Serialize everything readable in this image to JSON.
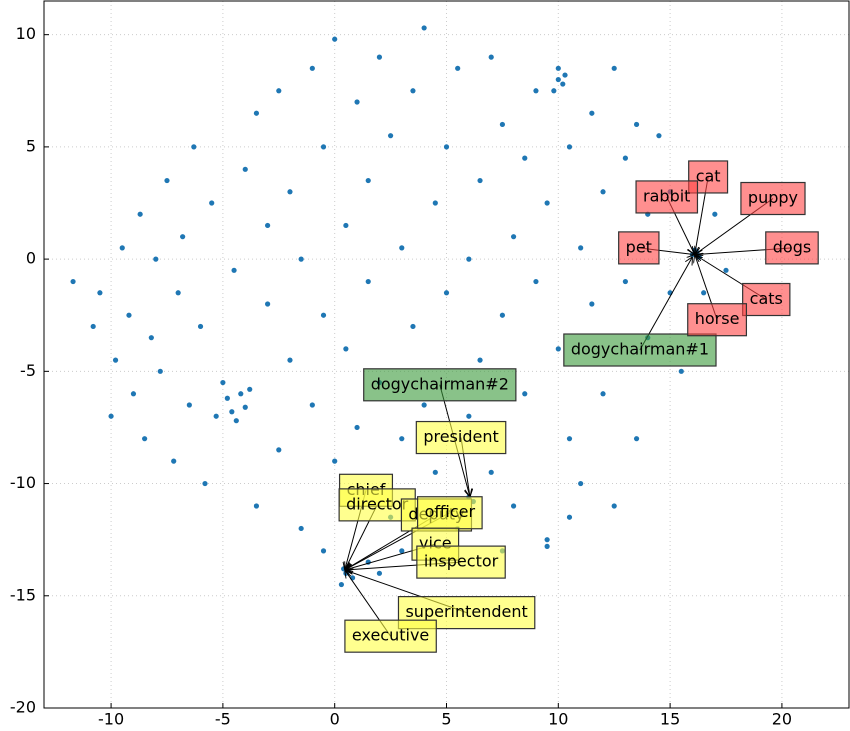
{
  "chart_data": {
    "type": "scatter",
    "color": "#1f77b4",
    "xlim": [
      -13,
      23
    ],
    "ylim": [
      -20,
      11.5
    ],
    "xticks": [
      -10,
      -5,
      0,
      5,
      10,
      15,
      20
    ],
    "yticks": [
      -20,
      -15,
      -10,
      -5,
      0,
      5,
      10
    ],
    "grid": true,
    "points": [
      [
        -11.7,
        -1
      ],
      [
        -10.8,
        -3
      ],
      [
        -10.5,
        -1.5
      ],
      [
        -10,
        -7
      ],
      [
        -9.8,
        -4.5
      ],
      [
        -9.5,
        0.5
      ],
      [
        -9.2,
        -2.5
      ],
      [
        -9,
        -6
      ],
      [
        -8.7,
        2
      ],
      [
        -8.5,
        -8
      ],
      [
        -8.2,
        -3.5
      ],
      [
        -8,
        0
      ],
      [
        -7.8,
        -5
      ],
      [
        -7.5,
        3.5
      ],
      [
        -7.2,
        -9
      ],
      [
        -7,
        -1.5
      ],
      [
        -6.8,
        1
      ],
      [
        -6.5,
        -6.5
      ],
      [
        -6.3,
        5
      ],
      [
        -6,
        -3
      ],
      [
        -5.8,
        -10
      ],
      [
        -5.5,
        2.5
      ],
      [
        -5.3,
        -7
      ],
      [
        -5,
        -5.5
      ],
      [
        -4.8,
        -6.2
      ],
      [
        -4.6,
        -6.8
      ],
      [
        -4.4,
        -7.2
      ],
      [
        -4.2,
        -6
      ],
      [
        -4,
        -6.6
      ],
      [
        -3.8,
        -5.8
      ],
      [
        -4.5,
        -0.5
      ],
      [
        -4,
        4
      ],
      [
        -3.5,
        6.5
      ],
      [
        -3.5,
        -11
      ],
      [
        -3,
        -2
      ],
      [
        -3,
        1.5
      ],
      [
        -2.5,
        -8.5
      ],
      [
        -2.5,
        7.5
      ],
      [
        -2,
        -4.5
      ],
      [
        -2,
        3
      ],
      [
        -1.5,
        -12
      ],
      [
        -1.5,
        0
      ],
      [
        -1,
        8.5
      ],
      [
        -1,
        -6.5
      ],
      [
        -0.5,
        5
      ],
      [
        -0.5,
        -2.5
      ],
      [
        0,
        9.8
      ],
      [
        0,
        -9
      ],
      [
        0.5,
        1.5
      ],
      [
        0.5,
        -4
      ],
      [
        1,
        7
      ],
      [
        1,
        -7.5
      ],
      [
        1.5,
        3.5
      ],
      [
        1.5,
        -1
      ],
      [
        2,
        9
      ],
      [
        2,
        -5.5
      ],
      [
        2.5,
        5.5
      ],
      [
        2.5,
        -11.5
      ],
      [
        3,
        0.5
      ],
      [
        3,
        -8
      ],
      [
        3.5,
        7.5
      ],
      [
        3.5,
        -3
      ],
      [
        4,
        10.3
      ],
      [
        4,
        -6.5
      ],
      [
        4.5,
        2.5
      ],
      [
        4.5,
        -9.5
      ],
      [
        5,
        5
      ],
      [
        5,
        -1.5
      ],
      [
        5.5,
        8.5
      ],
      [
        5.5,
        -12
      ],
      [
        6,
        0
      ],
      [
        6,
        -7
      ],
      [
        6.5,
        3.5
      ],
      [
        6.5,
        -4.5
      ],
      [
        7,
        9
      ],
      [
        7,
        -9.5
      ],
      [
        7.5,
        6
      ],
      [
        7.5,
        -2.5
      ],
      [
        8,
        1
      ],
      [
        8,
        -11
      ],
      [
        8.5,
        4.5
      ],
      [
        8.5,
        -6
      ],
      [
        9,
        7.5
      ],
      [
        9,
        -1
      ],
      [
        9.5,
        2.5
      ],
      [
        9.5,
        -12.5
      ],
      [
        10,
        8.5
      ],
      [
        10,
        8
      ],
      [
        10.2,
        7.8
      ],
      [
        10.3,
        8.2
      ],
      [
        9.8,
        7.5
      ],
      [
        10,
        -4
      ],
      [
        10.5,
        5
      ],
      [
        10.5,
        -8
      ],
      [
        11,
        0.5
      ],
      [
        11,
        -10
      ],
      [
        11.5,
        6.5
      ],
      [
        11.5,
        -2
      ],
      [
        12,
        3
      ],
      [
        12,
        -6
      ],
      [
        12.5,
        8.5
      ],
      [
        12.5,
        -11
      ],
      [
        13,
        4.5
      ],
      [
        13,
        -1
      ],
      [
        13.5,
        6
      ],
      [
        13.5,
        -8
      ],
      [
        14,
        2
      ],
      [
        14,
        -3.5
      ],
      [
        14.5,
        5.5
      ],
      [
        15,
        -1.5
      ],
      [
        15,
        3
      ],
      [
        15.5,
        -5
      ],
      [
        16,
        0.2
      ],
      [
        16.1,
        0.4
      ],
      [
        16.3,
        0.1
      ],
      [
        16.2,
        0.3
      ],
      [
        16.5,
        -1.5
      ],
      [
        17,
        2
      ],
      [
        17.5,
        -0.5
      ],
      [
        0.4,
        -13.8
      ],
      [
        0.5,
        -14
      ],
      [
        0.6,
        -13.9
      ],
      [
        0.8,
        -14.2
      ],
      [
        0.3,
        -14.5
      ],
      [
        1.5,
        -13.5
      ],
      [
        -0.5,
        -13
      ],
      [
        2,
        -14
      ],
      [
        3,
        -13
      ],
      [
        6,
        -10.6
      ],
      [
        6.2,
        -10.8
      ],
      [
        7.5,
        -13
      ],
      [
        9.5,
        -12.8
      ],
      [
        10.5,
        -11.5
      ]
    ],
    "annotations": [
      {
        "text": "dogychairman#1",
        "x": 13.65,
        "y": -4.05,
        "target": [
          16.0,
          0.1
        ],
        "color": "#3a9a3a"
      },
      {
        "text": "dogychairman#2",
        "x": 4.7,
        "y": -5.6,
        "target": [
          6.05,
          -10.6
        ],
        "color": "#3a9a3a"
      },
      {
        "text": "president",
        "x": 5.65,
        "y": -7.95,
        "target": [
          6.05,
          -10.6
        ],
        "color": "#ffff44"
      },
      {
        "text": "chief",
        "x": 1.4,
        "y": -10.3,
        "target": [
          0.45,
          -13.85
        ],
        "color": "#ffff44"
      },
      {
        "text": "director",
        "x": 1.9,
        "y": -10.95,
        "target": [
          0.45,
          -13.85
        ],
        "color": "#ffff44"
      },
      {
        "text": "deputy",
        "x": 4.55,
        "y": -11.4,
        "target": [
          0.45,
          -13.85
        ],
        "color": "#ffff44"
      },
      {
        "text": "officer",
        "x": 5.15,
        "y": -11.3,
        "target": [
          0.45,
          -13.85
        ],
        "color": "#ffff44"
      },
      {
        "text": "vice",
        "x": 4.5,
        "y": -12.7,
        "target": [
          0.45,
          -13.85
        ],
        "color": "#ffff44"
      },
      {
        "text": "inspector",
        "x": 5.65,
        "y": -13.5,
        "target": [
          0.45,
          -13.85
        ],
        "color": "#ffff44"
      },
      {
        "text": "superintendent",
        "x": 5.9,
        "y": -15.75,
        "target": [
          0.45,
          -13.85
        ],
        "color": "#ffff44"
      },
      {
        "text": "executive",
        "x": 2.5,
        "y": -16.8,
        "target": [
          0.45,
          -13.85
        ],
        "color": "#ffff44"
      },
      {
        "text": "cat",
        "x": 16.7,
        "y": 3.66,
        "target": [
          16.1,
          0.2
        ],
        "color": "#ff4444"
      },
      {
        "text": "rabbit",
        "x": 14.85,
        "y": 2.77,
        "target": [
          16.1,
          0.2
        ],
        "color": "#ff4444"
      },
      {
        "text": "puppy",
        "x": 19.6,
        "y": 2.7,
        "target": [
          16.1,
          0.2
        ],
        "color": "#ff4444"
      },
      {
        "text": "pet",
        "x": 13.6,
        "y": 0.5,
        "target": [
          16.1,
          0.2
        ],
        "color": "#ff4444"
      },
      {
        "text": "dogs",
        "x": 20.45,
        "y": 0.5,
        "target": [
          16.1,
          0.2
        ],
        "color": "#ff4444"
      },
      {
        "text": "cats",
        "x": 19.3,
        "y": -1.8,
        "target": [
          16.1,
          0.2
        ],
        "color": "#ff4444"
      },
      {
        "text": "horse",
        "x": 17.1,
        "y": -2.7,
        "target": [
          16.1,
          0.2
        ],
        "color": "#ff4444"
      }
    ]
  }
}
